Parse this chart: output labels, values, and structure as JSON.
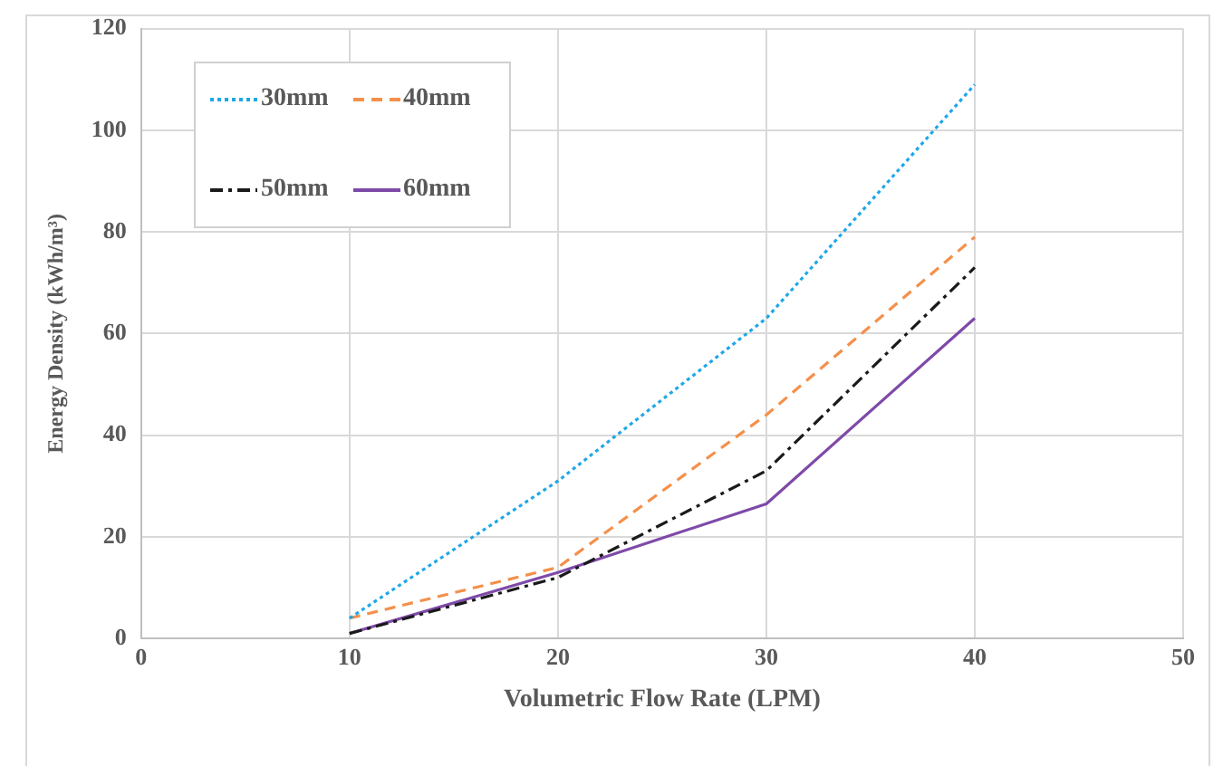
{
  "chart_data": {
    "type": "line",
    "xlabel": "Volumetric Flow Rate (LPM)",
    "ylabel": "Energy Density (kWh/m³)",
    "x": [
      10,
      20,
      30,
      40
    ],
    "series": [
      {
        "name": "30mm",
        "color": "#1fa7e8",
        "line_style": "dotted",
        "values": [
          4,
          31,
          63,
          109
        ]
      },
      {
        "name": "40mm",
        "color": "#f4904a",
        "line_style": "dashed",
        "values": [
          4,
          14,
          44,
          79
        ]
      },
      {
        "name": "50mm",
        "color": "#1a1a1a",
        "line_style": "dashdot",
        "values": [
          1,
          12,
          33,
          73
        ]
      },
      {
        "name": "60mm",
        "color": "#7e4aa8",
        "line_style": "solid",
        "values": [
          1,
          13,
          26.5,
          63
        ]
      }
    ],
    "xlim": [
      0,
      50
    ],
    "xticks": [
      0,
      10,
      20,
      30,
      40,
      50
    ],
    "ylim": [
      0,
      120
    ],
    "yticks": [
      0,
      20,
      40,
      60,
      80,
      100,
      120
    ],
    "grid": true,
    "legend": "top left",
    "marker": "none"
  }
}
